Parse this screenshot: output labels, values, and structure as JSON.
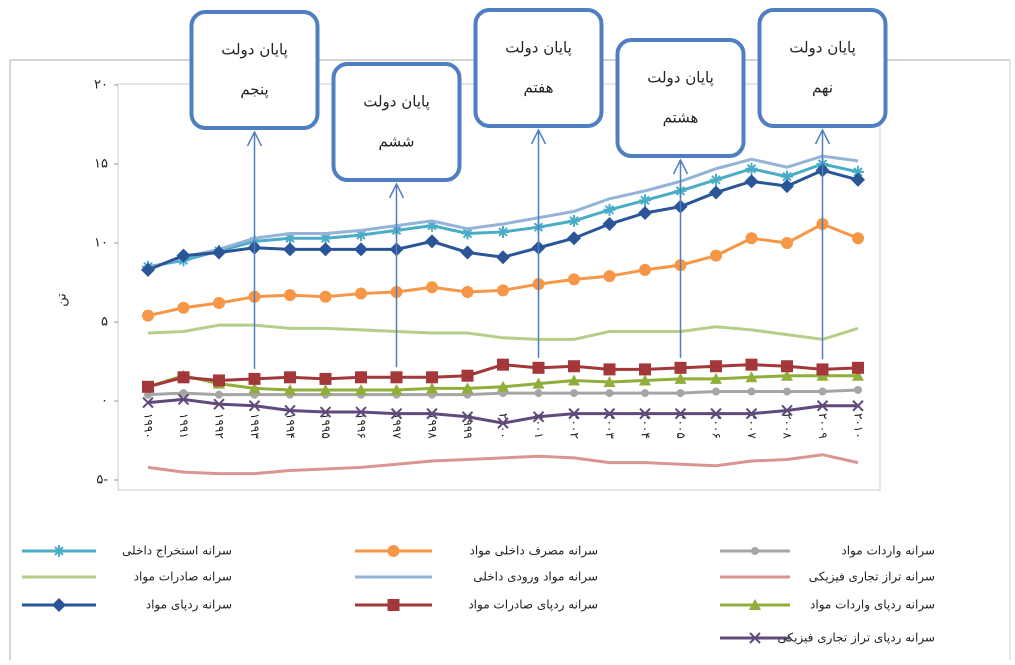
{
  "chart_data": {
    "type": "line",
    "ylabel": "تن",
    "categories": [
      "۱۹۹۰",
      "۱۹۹۱",
      "۱۹۹۲",
      "۱۹۹۳",
      "۱۹۹۴",
      "۱۹۹۵",
      "۱۹۹۶",
      "۱۹۹۷",
      "۱۹۹۸",
      "۱۹۹۹",
      "۲۰۰۰",
      "۲۰۰۱",
      "۲۰۰۲",
      "۲۰۰۳",
      "۲۰۰۴",
      "۲۰۰۵",
      "۲۰۰۶",
      "۲۰۰۷",
      "۲۰۰۸",
      "۲۰۰۹",
      "۲۰۱۰"
    ],
    "ylim": [
      -5,
      20
    ],
    "yticks": [
      {
        "value": -5,
        "label": "۵-"
      },
      {
        "value": 0,
        "label": "۰"
      },
      {
        "value": 5,
        "label": "۵"
      },
      {
        "value": 10,
        "label": "۱۰"
      },
      {
        "value": 15,
        "label": "۱۵"
      },
      {
        "value": 20,
        "label": "۲۰"
      }
    ],
    "series": [
      {
        "name": "سرانه واردات مواد",
        "color": "#a5a5a5",
        "marker": "circle-small",
        "values": [
          0.4,
          0.5,
          0.4,
          0.4,
          0.4,
          0.4,
          0.4,
          0.4,
          0.4,
          0.4,
          0.5,
          0.5,
          0.5,
          0.5,
          0.5,
          0.5,
          0.6,
          0.6,
          0.6,
          0.6,
          0.7
        ]
      },
      {
        "name": "سرانه مصرف داخلی مواد",
        "color": "#f79646",
        "marker": "circle",
        "values": [
          5.4,
          5.9,
          6.2,
          6.6,
          6.7,
          6.6,
          6.8,
          6.9,
          7.2,
          6.9,
          7.0,
          7.4,
          7.7,
          7.9,
          8.3,
          8.6,
          9.2,
          10.3,
          10.0,
          11.2,
          10.3
        ]
      },
      {
        "name": "سرانه استخراج داخلی",
        "color": "#4bacc6",
        "marker": "star",
        "values": [
          8.5,
          8.9,
          9.5,
          10.1,
          10.3,
          10.3,
          10.5,
          10.8,
          11.1,
          10.6,
          10.7,
          11.0,
          11.4,
          12.1,
          12.7,
          13.3,
          14.0,
          14.7,
          14.2,
          15.0,
          14.5
        ]
      },
      {
        "name": "سرانه تراز تجاری فیزیکی",
        "color": "#d99594",
        "marker": "none",
        "values": [
          -4.2,
          -4.5,
          -4.6,
          -4.6,
          -4.4,
          -4.3,
          -4.2,
          -4.0,
          -3.8,
          -3.7,
          -3.6,
          -3.5,
          -3.6,
          -3.9,
          -3.9,
          -4.0,
          -4.1,
          -3.8,
          -3.7,
          -3.4,
          -3.9
        ]
      },
      {
        "name": "سرانه مواد ورودی داخلی",
        "color": "#95b3d7",
        "marker": "none",
        "values": [
          8.4,
          9.1,
          9.6,
          10.3,
          10.6,
          10.6,
          10.8,
          11.1,
          11.4,
          10.9,
          11.2,
          11.6,
          12.0,
          12.8,
          13.3,
          13.9,
          14.7,
          15.3,
          14.8,
          15.5,
          15.2
        ]
      },
      {
        "name": "سرانه صادرات مواد",
        "color": "#b5cf8a",
        "marker": "none",
        "values": [
          4.3,
          4.4,
          4.8,
          4.8,
          4.6,
          4.6,
          4.5,
          4.4,
          4.3,
          4.3,
          4.0,
          3.9,
          3.9,
          4.4,
          4.4,
          4.4,
          4.7,
          4.5,
          4.2,
          3.9,
          4.6
        ]
      },
      {
        "name": "سرانه ردپای واردات مواد",
        "color": "#8fae3a",
        "marker": "triangle",
        "values": [
          0.9,
          1.6,
          1.1,
          0.8,
          0.7,
          0.7,
          0.7,
          0.7,
          0.8,
          0.8,
          0.9,
          1.1,
          1.3,
          1.2,
          1.3,
          1.4,
          1.4,
          1.5,
          1.6,
          1.6,
          1.6
        ]
      },
      {
        "name": "سرانه ردپای صادرات مواد",
        "color": "#a3373a",
        "marker": "square",
        "values": [
          0.9,
          1.5,
          1.3,
          1.4,
          1.5,
          1.4,
          1.5,
          1.5,
          1.5,
          1.6,
          2.3,
          2.1,
          2.2,
          2.0,
          2.0,
          2.1,
          2.2,
          2.3,
          2.2,
          2.0,
          2.1
        ]
      },
      {
        "name": "سرانه ردپای مواد",
        "color": "#2a5597",
        "marker": "diamond",
        "values": [
          8.3,
          9.2,
          9.4,
          9.7,
          9.6,
          9.6,
          9.6,
          9.6,
          10.1,
          9.4,
          9.1,
          9.7,
          10.3,
          11.2,
          11.9,
          12.3,
          13.2,
          13.9,
          13.6,
          14.6,
          14.0
        ]
      },
      {
        "name": "سرانه ردپای تراز تجاری فیزیکی",
        "color": "#604a7b",
        "marker": "x",
        "values": [
          -0.1,
          0.1,
          -0.2,
          -0.3,
          -0.6,
          -0.7,
          -0.7,
          -0.8,
          -0.8,
          -1.0,
          -1.4,
          -1.0,
          -0.8,
          -0.8,
          -0.8,
          -0.8,
          -0.8,
          -0.8,
          -0.6,
          -0.3,
          -0.3
        ]
      }
    ],
    "annotations": [
      {
        "lines": [
          "پایان دولت",
          "پنجم"
        ],
        "x": "۱۹۹۳"
      },
      {
        "lines": [
          "پایان دولت",
          "ششم"
        ],
        "x": "۱۹۹۷"
      },
      {
        "lines": [
          "پایان دولت",
          "هفتم"
        ],
        "x": "۲۰۰۱"
      },
      {
        "lines": [
          "پایان دولت",
          "هشتم"
        ],
        "x": "۲۰۰۵"
      },
      {
        "lines": [
          "پایان دولت",
          "نهم"
        ],
        "x": "۲۰۰۹"
      }
    ]
  }
}
